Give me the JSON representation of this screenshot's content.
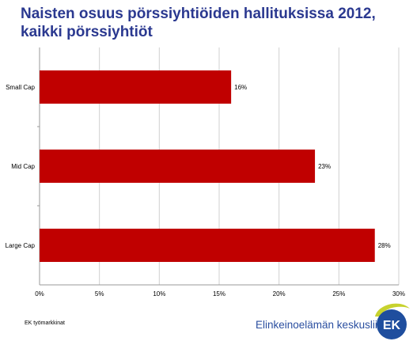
{
  "header": {
    "title_line1": "Naisten osuus pörssiyhtiöiden hallituksissa 2012,",
    "title_line2": "kaikki pörssiyhtiöt"
  },
  "chart_data": {
    "type": "bar",
    "orientation": "horizontal",
    "categories": [
      "Small Cap",
      "Mid Cap",
      "Large Cap"
    ],
    "values": [
      16,
      23,
      28
    ],
    "value_labels": [
      "16%",
      "23%",
      "28%"
    ],
    "xlim": [
      0,
      30
    ],
    "xticks": [
      "0%",
      "5%",
      "10%",
      "15%",
      "20%",
      "25%",
      "30%"
    ],
    "grid": true,
    "legend": "none",
    "bar_color": "#c00000"
  },
  "footer": {
    "source": "EK työmarkkinat",
    "brand": "Elinkeinoelämän keskusliitto",
    "logo_text": "EK"
  },
  "colors": {
    "title": "#2b3990",
    "bar": "#c00000",
    "brand": "#2b4fa0",
    "logo_green": "#c7d22e",
    "logo_blue": "#1f4e9e"
  }
}
